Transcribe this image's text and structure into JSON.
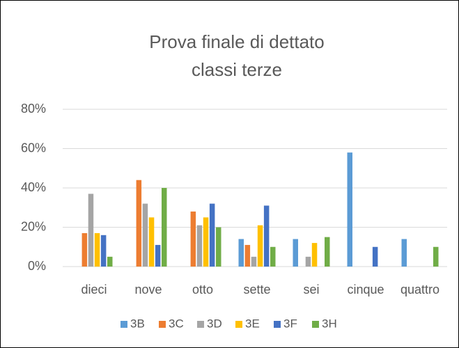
{
  "chart_data": {
    "type": "bar",
    "title": [
      "Prova finale di dettato",
      "classi terze"
    ],
    "categories": [
      "dieci",
      "nove",
      "otto",
      "sette",
      "sei",
      "cinque",
      "quattro"
    ],
    "series": [
      {
        "name": "3B",
        "color": "#5b9bd5",
        "values": [
          0,
          0,
          0,
          14,
          14,
          58,
          14
        ]
      },
      {
        "name": "3C",
        "color": "#ed7d31",
        "values": [
          17,
          44,
          28,
          11,
          0,
          0,
          0
        ]
      },
      {
        "name": "3D",
        "color": "#a5a5a5",
        "values": [
          37,
          32,
          21,
          5,
          5,
          0,
          0
        ]
      },
      {
        "name": "3E",
        "color": "#ffc000",
        "values": [
          17,
          25,
          25,
          21,
          12,
          0,
          0
        ]
      },
      {
        "name": "3F",
        "color": "#4472c4",
        "values": [
          16,
          11,
          32,
          31,
          0,
          10,
          0
        ]
      },
      {
        "name": "3H",
        "color": "#70ad47",
        "values": [
          5,
          40,
          20,
          10,
          15,
          0,
          10
        ]
      }
    ],
    "ylim": [
      0,
      80
    ],
    "yticks": [
      {
        "value": 0,
        "label": "0%"
      },
      {
        "value": 20,
        "label": "20%"
      },
      {
        "value": 40,
        "label": "40%"
      },
      {
        "value": 60,
        "label": "60%"
      },
      {
        "value": 80,
        "label": "80%"
      }
    ],
    "grid": true,
    "legend": "bottom"
  }
}
